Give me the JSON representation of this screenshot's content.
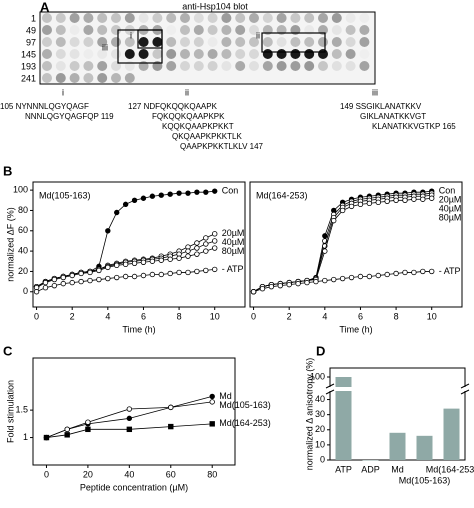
{
  "panel_labels": [
    "A",
    "B",
    "C",
    "D"
  ],
  "panel_a": {
    "title": "anti-Hsp104 blot",
    "row_labels": [
      "1",
      "49",
      "97",
      "145",
      "193",
      "241"
    ],
    "box_labels": [
      "i",
      "ii",
      "iii"
    ],
    "sequences": [
      {
        "label": "i",
        "lines": [
          "105 NYNNNLQGYQAGF",
          "NNNLQGYQAGFQP 119"
        ]
      },
      {
        "label": "ii",
        "lines": [
          "127 NDFQKQQKQAAPK",
          "FQKQQKQAAPKPK",
          "KQQKQAAPKPKKT",
          "QKQAAPKPKKTLK",
          "QAAPKPKKTLKLV 147"
        ]
      },
      {
        "label": "iii",
        "lines": [
          "149 SSGIKLANATKKV",
          "GIKLANATKKVGT",
          "KLANATKKVGTKP 165"
        ]
      }
    ]
  },
  "chart_data": [
    {
      "type": "line",
      "title": "Md(105-163)",
      "x_label": "Time (h)",
      "y_label": "normalized ΔF (%)",
      "x": [
        0,
        0.5,
        1,
        1.5,
        2,
        2.5,
        3,
        3.5,
        4,
        4.5,
        5,
        5.5,
        6,
        6.5,
        7,
        7.5,
        8,
        8.5,
        9,
        9.5,
        10
      ],
      "xlim": [
        -0.2,
        11.7
      ],
      "ylim": [
        -15,
        108
      ],
      "xticks": [
        0,
        2,
        4,
        6,
        8,
        10
      ],
      "yticks": [
        0,
        20,
        40,
        60,
        80,
        100
      ],
      "series": [
        {
          "name": "Con",
          "color": "#000000",
          "marker": "filled",
          "values": [
            5,
            10,
            13,
            15,
            17,
            19,
            20,
            25,
            60,
            78,
            86,
            90,
            92,
            94,
            95,
            96,
            97,
            97,
            98,
            98,
            99
          ]
        },
        {
          "name": "20µM",
          "color": "#000000",
          "marker": "open",
          "values": [
            5,
            10,
            13,
            15,
            17,
            19,
            20,
            22,
            26,
            28,
            30,
            31,
            32,
            33,
            35,
            37,
            40,
            44,
            48,
            53,
            57
          ]
        },
        {
          "name": "40µM",
          "color": "#000000",
          "marker": "open",
          "values": [
            5,
            10,
            13,
            15,
            17,
            19,
            20,
            22,
            25,
            27,
            29,
            30,
            31,
            32,
            33,
            35,
            37,
            40,
            43,
            47,
            50
          ]
        },
        {
          "name": "80µM",
          "color": "#000000",
          "marker": "open",
          "values": [
            4,
            9,
            12,
            14,
            16,
            18,
            19,
            21,
            24,
            26,
            27,
            28,
            29,
            30,
            31,
            32,
            33,
            35,
            37,
            40,
            43
          ]
        },
        {
          "name": "- ATP",
          "color": "#000000",
          "marker": "open",
          "values": [
            0,
            4,
            6,
            8,
            9,
            10,
            11,
            12,
            13,
            14,
            15,
            15,
            16,
            17,
            17,
            18,
            19,
            19,
            20,
            21,
            22
          ]
        }
      ]
    },
    {
      "type": "line",
      "title": "Md(164-253)",
      "x_label": "Time (h)",
      "x": [
        0,
        0.5,
        1,
        1.5,
        2,
        2.5,
        3,
        3.5,
        4,
        4.5,
        5,
        5.5,
        6,
        6.5,
        7,
        7.5,
        8,
        8.5,
        9,
        9.5,
        10
      ],
      "xlim": [
        -0.2,
        11.7
      ],
      "ylim": [
        -15,
        108
      ],
      "xticks": [
        0,
        2,
        4,
        6,
        8,
        10
      ],
      "series": [
        {
          "name": "Con",
          "color": "#000000",
          "marker": "filled",
          "values": [
            0,
            5,
            7,
            8,
            9,
            10,
            11,
            14,
            55,
            80,
            88,
            91,
            93,
            94,
            95,
            96,
            97,
            97,
            98,
            98,
            99
          ]
        },
        {
          "name": "20µM",
          "color": "#000000",
          "marker": "open",
          "values": [
            0,
            5,
            7,
            8,
            9,
            10,
            11,
            13,
            50,
            76,
            85,
            89,
            91,
            92,
            93,
            94,
            95,
            95,
            96,
            96,
            97
          ]
        },
        {
          "name": "40µM",
          "color": "#000000",
          "marker": "open",
          "values": [
            0,
            5,
            7,
            8,
            9,
            10,
            11,
            13,
            45,
            73,
            83,
            87,
            89,
            90,
            91,
            92,
            93,
            93,
            94,
            94,
            95
          ]
        },
        {
          "name": "80µM",
          "color": "#000000",
          "marker": "open",
          "values": [
            0,
            5,
            7,
            8,
            9,
            10,
            11,
            12,
            40,
            70,
            80,
            84,
            86,
            87,
            88,
            89,
            90,
            90,
            91,
            91,
            92
          ]
        },
        {
          "name": "- ATP",
          "color": "#000000",
          "marker": "open",
          "values": [
            0,
            3,
            5,
            6,
            7,
            8,
            9,
            10,
            11,
            12,
            13,
            14,
            15,
            15,
            16,
            17,
            18,
            19,
            19,
            20,
            20
          ]
        }
      ]
    },
    {
      "type": "line",
      "x_label": "Peptide concentration (µM)",
      "y_label": "Fold stimulation",
      "x": [
        0,
        10,
        20,
        40,
        60,
        80
      ],
      "xlim": [
        -6.5,
        91
      ],
      "ylim": [
        0.5,
        2.45
      ],
      "xticks": [
        0,
        20,
        40,
        60,
        80
      ],
      "yticks": [
        1,
        1.5
      ],
      "series": [
        {
          "name": "Md",
          "color": "#000000",
          "marker": "filled",
          "values": [
            1,
            1.15,
            1.25,
            1.35,
            1.55,
            1.75
          ]
        },
        {
          "name": "Md(105-163)",
          "color": "#000000",
          "marker": "open",
          "values": [
            1,
            1.15,
            1.28,
            1.52,
            1.55,
            1.65
          ]
        },
        {
          "name": "Md(164-253)",
          "color": "#000000",
          "marker": "square",
          "values": [
            1,
            1.05,
            1.15,
            1.15,
            1.2,
            1.25
          ]
        }
      ]
    },
    {
      "type": "bar",
      "y_label": "normalized Δ anisotropy (%)",
      "color": "#8fa9a6",
      "categories": [
        "ATP",
        "ADP",
        "Md",
        "Md(105-163)",
        "Md(164-253)"
      ],
      "values": [
        100,
        0,
        18,
        16,
        34
      ],
      "ylim": [
        0,
        105
      ],
      "ybreak": [
        45,
        95
      ],
      "yticks": [
        0,
        10,
        20,
        30,
        40,
        100
      ]
    }
  ]
}
